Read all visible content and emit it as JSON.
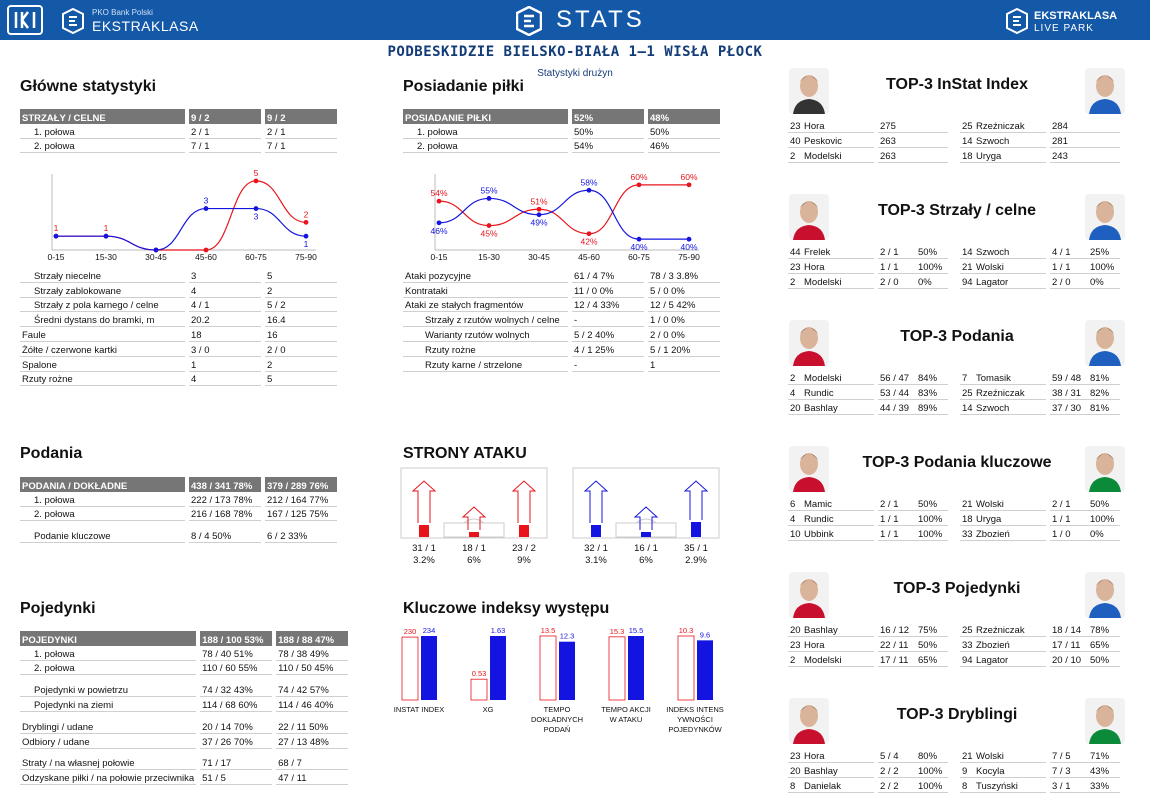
{
  "header": {
    "bank": "PKO Bank Polski",
    "brand": "EKSTRAKLASA",
    "stats": "STATS",
    "lp1": "EKSTRAKLASA",
    "lp2": "LIVE PARK",
    "match": "PODBESKIDZIE BIELSKO-BIAŁA 1–1 WISŁA PŁOCK",
    "subtitle": "Statystyki drużyn"
  },
  "colors": {
    "home": "#e8141c",
    "away": "#1414e0",
    "header": "#767676",
    "brand": "#1458a8"
  },
  "main": {
    "title": "Główne statystyki",
    "head": [
      "STRZAŁY / CELNE",
      "9 / 2",
      "9 / 2"
    ],
    "halves": [
      [
        "1. połowa",
        "2 / 1",
        "2 / 1"
      ],
      [
        "2. połowa",
        "7 / 1",
        "7 / 1"
      ]
    ],
    "rows": [
      [
        "Strzały niecelne",
        "3",
        "5",
        1
      ],
      [
        "Strzały zablokowane",
        "4",
        "2",
        1
      ],
      [
        "Strzały z pola karnego / celne",
        "4 / 1",
        "5 / 2",
        1
      ],
      [
        "Średni dystans do bramki, m",
        "20.2",
        "16.4",
        1
      ],
      [
        "Faule",
        "18",
        "16",
        0
      ],
      [
        "Żółte / czerwone kartki",
        "3 / 0",
        "2 / 0",
        0
      ],
      [
        "Spalone",
        "1",
        "2",
        0
      ],
      [
        "Rzuty rożne",
        "4",
        "5",
        0
      ]
    ]
  },
  "possession": {
    "title": "Posiadanie piłki",
    "head": [
      "POSIADANIE PIŁKI",
      "52%",
      "48%"
    ],
    "halves": [
      [
        "1. połowa",
        "50%",
        "50%"
      ],
      [
        "2. połowa",
        "54%",
        "46%"
      ]
    ],
    "rows": [
      [
        "Ataki pozycyjne",
        "61 / 4  7%",
        "78 / 3  3.8%",
        0
      ],
      [
        "Kontrataki",
        "11 / 0  0%",
        "5 / 0    0%",
        0
      ],
      [
        "Ataki ze stałych fragmentów",
        "12 / 4  33%",
        "12 / 5  42%",
        0
      ],
      [
        "Strzały z rzutów wolnych / celne",
        "-",
        "1 / 0    0%",
        1
      ],
      [
        "Warianty rzutów wolnych",
        "5 / 2    40%",
        "2 / 0    0%",
        1
      ],
      [
        "Rzuty rożne",
        "4 / 1    25%",
        "5 / 1    20%",
        1
      ],
      [
        "Rzuty karne / strzelone",
        "-",
        "1",
        1
      ]
    ]
  },
  "chart_data": [
    {
      "type": "line",
      "categories": [
        "0-15",
        "15-30",
        "30-45",
        "45-60",
        "60-75",
        "75-90"
      ],
      "series": [
        {
          "values": [
            1,
            1,
            0,
            0,
            5,
            2
          ]
        },
        {
          "values": [
            1,
            1,
            0,
            3,
            3,
            1
          ]
        }
      ],
      "labels": [
        [
          "1",
          "1",
          "",
          "",
          "5",
          "2"
        ],
        [
          "",
          "",
          "",
          "3",
          "3",
          "1"
        ]
      ],
      "ylim": [
        0,
        5.5
      ]
    },
    {
      "type": "line",
      "categories": [
        "0-15",
        "15-30",
        "30-45",
        "45-60",
        "60-75",
        "75-90"
      ],
      "series": [
        {
          "values": [
            54,
            45,
            51,
            42,
            60,
            60
          ]
        },
        {
          "values": [
            46,
            55,
            49,
            58,
            40,
            40
          ]
        }
      ],
      "labels": [
        [
          "54%",
          "45%",
          "51%",
          "42%",
          "60%",
          "60%"
        ],
        [
          "46%",
          "55%",
          "49%",
          "58%",
          "40%",
          "40%"
        ]
      ],
      "ylim": [
        36,
        64
      ]
    },
    {
      "type": "bar",
      "categories": [
        "INSTAT INDEX",
        "XG",
        "TEMPO DOKLADNYCH PODAŃ",
        "TEMPO AKCJI W ATAKU",
        "INDEKS INTENSYWNOŚCI POJEDYNKÓW"
      ],
      "series": [
        {
          "values": [
            230,
            0.53,
            13.5,
            15.3,
            10.3
          ]
        },
        {
          "values": [
            234,
            1.63,
            12.3,
            15.5,
            9.6
          ]
        }
      ],
      "labels": [
        [
          "230",
          "0.53",
          "13.5",
          "15.3",
          "10.3"
        ],
        [
          "234",
          "1.63",
          "12.3",
          "15.5",
          "9.6"
        ]
      ]
    }
  ],
  "passes": {
    "title": "Podania",
    "head": [
      "PODANIA / DOKŁADNE",
      "438 / 341  78%",
      "379 / 289  76%"
    ],
    "rows": [
      [
        "1. połowa",
        "222 / 173  78%",
        "212 / 164  77%",
        "ind"
      ],
      [
        "2. połowa",
        "216 / 168  78%",
        "167 / 125  75%",
        "ind"
      ],
      [
        "",
        "",
        "",
        "gap"
      ],
      [
        "Podanie kluczowe",
        "8 / 4          50%",
        "6 / 2          33%",
        "ind"
      ]
    ]
  },
  "duels": {
    "title": "Pojedynki",
    "head": [
      "POJEDYNKI",
      "188 / 100  53%",
      "188 / 88  47%"
    ],
    "rows": [
      [
        "1. połowa",
        "78 / 40    51%",
        "78 / 38   49%",
        "ind"
      ],
      [
        "2. połowa",
        "110 / 60  55%",
        "110 / 50  45%",
        "ind"
      ],
      [
        "",
        "",
        "",
        "gap"
      ],
      [
        "Pojedynki w powietrzu",
        "74 / 32     43%",
        "74 / 42    57%",
        "ind"
      ],
      [
        "Pojedynki na ziemi",
        "114 / 68   60%",
        "114 / 46  40%",
        "ind"
      ],
      [
        "",
        "",
        "",
        "gap"
      ],
      [
        "Dryblingi / udane",
        "20 / 14     70%",
        "22 / 11    50%",
        ""
      ],
      [
        "Odbiory / udane",
        "37 / 26     70%",
        "27 / 13    48%",
        ""
      ],
      [
        "",
        "",
        "",
        "gap"
      ],
      [
        "Straty / na własnej połowie",
        "71 / 17",
        "68 / 7",
        ""
      ],
      [
        "Odzyskane piłki / na połowie przeciwnika",
        "51 / 5",
        "47 / 11",
        ""
      ]
    ]
  },
  "attack": {
    "title": "STRONY ATAKU",
    "home": {
      "counts": [
        "31 / 1",
        "18 / 1",
        "23 / 2"
      ],
      "pct": [
        "3.2%",
        "6%",
        "9%"
      ],
      "shares": [
        0.6,
        0.25,
        0.6
      ]
    },
    "away": {
      "counts": [
        "32 / 1",
        "16 / 1",
        "35 / 1"
      ],
      "pct": [
        "3.1%",
        "6%",
        "2.9%"
      ],
      "shares": [
        0.6,
        0.25,
        0.75
      ]
    }
  },
  "indexes": {
    "title": "Kluczowe indeksy występu"
  },
  "tops": [
    {
      "title": "TOP-3 InStat Index",
      "left": [
        [
          "23",
          "Hora",
          "275"
        ],
        [
          "40",
          "Peskovic",
          "263"
        ],
        [
          "2",
          "Modelski",
          "263"
        ]
      ],
      "right": [
        [
          "25",
          "Rzeźniczak",
          "284"
        ],
        [
          "14",
          "Szwoch",
          "281"
        ],
        [
          "18",
          "Uryga",
          "243"
        ]
      ]
    },
    {
      "title": "TOP-3 Strzały / celne",
      "left": [
        [
          "44",
          "Frelek",
          "2 / 1",
          "50%"
        ],
        [
          "23",
          "Hora",
          "1 / 1",
          "100%"
        ],
        [
          "2",
          "Modelski",
          "2 / 0",
          "0%"
        ]
      ],
      "right": [
        [
          "14",
          "Szwoch",
          "4 / 1",
          "25%"
        ],
        [
          "21",
          "Wolski",
          "1 / 1",
          "100%"
        ],
        [
          "94",
          "Lagator",
          "2 / 0",
          "0%"
        ]
      ]
    },
    {
      "title": "TOP-3 Podania",
      "left": [
        [
          "2",
          "Modelski",
          "56 / 47",
          "84%"
        ],
        [
          "4",
          "Rundic",
          "53 / 44",
          "83%"
        ],
        [
          "20",
          "Bashlay",
          "44 / 39",
          "89%"
        ]
      ],
      "right": [
        [
          "7",
          "Tomasik",
          "59 / 48",
          "81%"
        ],
        [
          "25",
          "Rzeźniczak",
          "38 / 31",
          "82%"
        ],
        [
          "14",
          "Szwoch",
          "37 / 30",
          "81%"
        ]
      ]
    },
    {
      "title": "TOP-3 Podania kluczowe",
      "left": [
        [
          "6",
          "Mamic",
          "2 / 1",
          "50%"
        ],
        [
          "4",
          "Rundic",
          "1 / 1",
          "100%"
        ],
        [
          "10",
          "Ubbink",
          "1 / 1",
          "100%"
        ]
      ],
      "right": [
        [
          "21",
          "Wolski",
          "2 / 1",
          "50%"
        ],
        [
          "18",
          "Uryga",
          "1 / 1",
          "100%"
        ],
        [
          "33",
          "Zbozień",
          "1 / 0",
          "0%"
        ]
      ]
    },
    {
      "title": "TOP-3 Pojedynki",
      "left": [
        [
          "20",
          "Bashlay",
          "16 / 12",
          "75%"
        ],
        [
          "23",
          "Hora",
          "22 / 11",
          "50%"
        ],
        [
          "2",
          "Modelski",
          "17 / 11",
          "65%"
        ]
      ],
      "right": [
        [
          "25",
          "Rzeźniczak",
          "18 / 14",
          "78%"
        ],
        [
          "33",
          "Zbozień",
          "17 / 11",
          "65%"
        ],
        [
          "94",
          "Lagator",
          "20 / 10",
          "50%"
        ]
      ]
    },
    {
      "title": "TOP-3 Dryblingi",
      "left": [
        [
          "23",
          "Hora",
          "5 / 4",
          "80%"
        ],
        [
          "20",
          "Bashlay",
          "2 / 2",
          "100%"
        ],
        [
          "8",
          "Danielak",
          "2 / 2",
          "100%"
        ]
      ],
      "right": [
        [
          "21",
          "Wolski",
          "7 / 5",
          "71%"
        ],
        [
          "9",
          "Kocyla",
          "7 / 3",
          "43%"
        ],
        [
          "8",
          "Tuszyński",
          "3 / 1",
          "33%"
        ]
      ]
    }
  ]
}
